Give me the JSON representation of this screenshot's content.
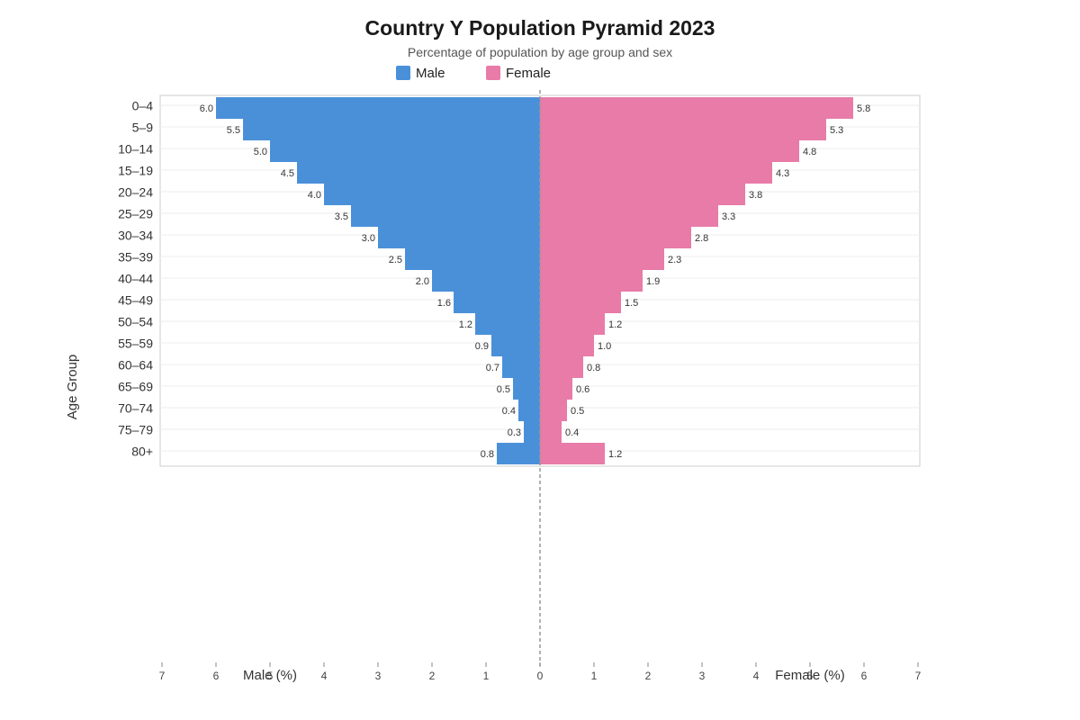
{
  "chart_data": {
    "type": "bar",
    "orientation": "horizontal",
    "title": "Country Y Population Pyramid 2023",
    "subtitle": "Percentage of population by age group and sex",
    "ylabel": "Age Group",
    "xlabel_left": "Male (%)",
    "xlabel_right": "Female (%)",
    "legend_position": "top-center",
    "grid": true,
    "xlim": [
      -7,
      7
    ],
    "x_ticks": [
      "7",
      "6",
      "5",
      "4",
      "3",
      "2",
      "1",
      "0",
      "1",
      "2",
      "3",
      "4",
      "5",
      "6",
      "7"
    ],
    "categories": [
      "0–4",
      "5–9",
      "10–14",
      "15–19",
      "20–24",
      "25–29",
      "30–34",
      "35–39",
      "40–44",
      "45–49",
      "50–54",
      "55–59",
      "60–64",
      "65–69",
      "70–74",
      "75–79",
      "80+"
    ],
    "series": [
      {
        "name": "Male",
        "color": "#4a90d9",
        "values": [
          6.0,
          5.5,
          5.0,
          4.5,
          4.0,
          3.5,
          3.0,
          2.5,
          2.0,
          1.6,
          1.2,
          0.9,
          0.7,
          0.5,
          0.4,
          0.3,
          0.8
        ]
      },
      {
        "name": "Female",
        "color": "#e87ba8",
        "values": [
          5.8,
          5.3,
          4.8,
          4.3,
          3.8,
          3.3,
          2.8,
          2.3,
          1.9,
          1.5,
          1.2,
          1.0,
          0.8,
          0.6,
          0.5,
          0.4,
          1.2
        ]
      }
    ]
  }
}
